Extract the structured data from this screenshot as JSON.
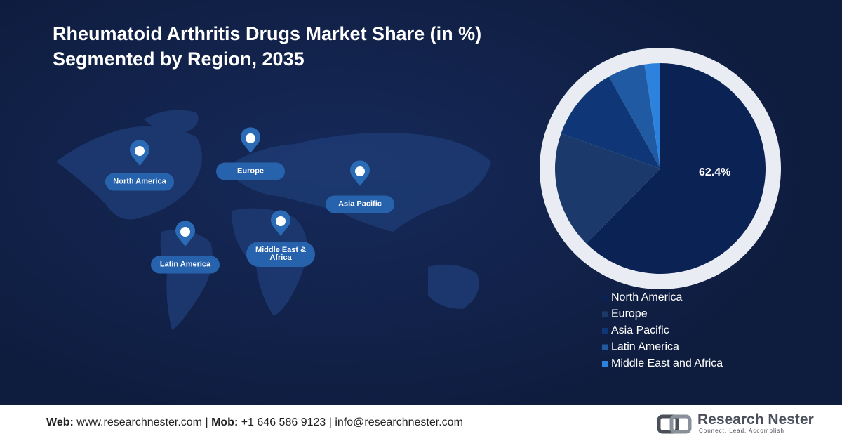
{
  "chart_data": {
    "type": "pie",
    "title": "Rheumatoid Arthritis Drugs Market Share (in %)",
    "subtitle": "Segmented by Region, 2035",
    "categories": [
      "North America",
      "Europe",
      "Asia Pacific",
      "Latin America",
      "Middle East and Africa"
    ],
    "values": [
      62.4,
      18,
      11.5,
      5.7,
      2.4
    ],
    "value_labels": [
      "62.4%",
      null,
      null,
      null,
      null
    ],
    "colors": [
      "#0b2255",
      "#1b3a6b",
      "#0f3676",
      "#1f5aa3",
      "#2c82dc"
    ],
    "legend": "bottom-right"
  },
  "map_labels": [
    "North America",
    "Europe",
    "Asia Pacific",
    "Latin America",
    "Middle East & Africa"
  ],
  "footer": {
    "web_label": "Web:",
    "web": "www.researchnester.com",
    "separator": "|",
    "mob_label": "Mob:",
    "mob": "+1 646 586 9123",
    "email": "info@researchnester.com"
  },
  "logo": {
    "name": "Research Nester",
    "tagline": "Connect. Lead. Accomplish"
  }
}
